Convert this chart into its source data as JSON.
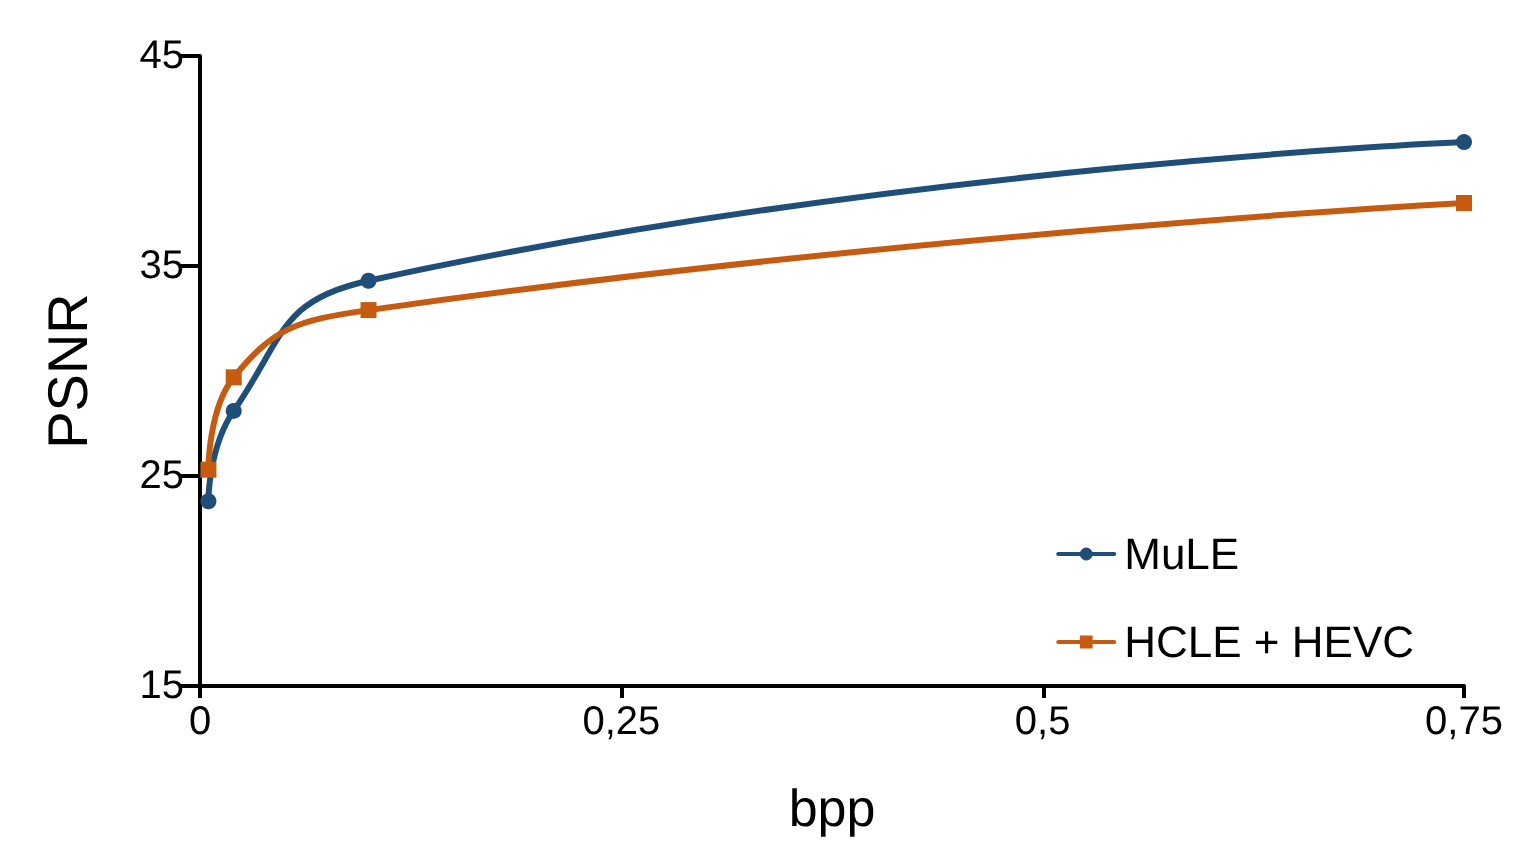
{
  "chart_data": {
    "type": "line",
    "xlabel": "bpp",
    "ylabel": "PSNR",
    "xlim": [
      0,
      0.75
    ],
    "xticks": [
      {
        "value": 0,
        "label": "0"
      },
      {
        "value": 0.25,
        "label": "0,25"
      },
      {
        "value": 0.5,
        "label": "0,5"
      },
      {
        "value": 0.75,
        "label": "0,75"
      }
    ],
    "ylim": [
      15,
      45
    ],
    "yticks": [
      15,
      25,
      35,
      45
    ],
    "grid": false,
    "legend": "bottom right",
    "line_style": "solid",
    "series": [
      {
        "name": "MuLE",
        "color": "#1f4e79",
        "marker": "circle",
        "x": [
          0.005,
          0.02,
          0.1,
          0.75
        ],
        "values": [
          23.8,
          28.1,
          34.3,
          40.9
        ]
      },
      {
        "name": "HCLE + HEVC",
        "color": "#c55a11",
        "marker": "square",
        "x": [
          0.005,
          0.02,
          0.1,
          0.75
        ],
        "values": [
          25.3,
          29.7,
          32.9,
          38.0
        ]
      }
    ]
  }
}
